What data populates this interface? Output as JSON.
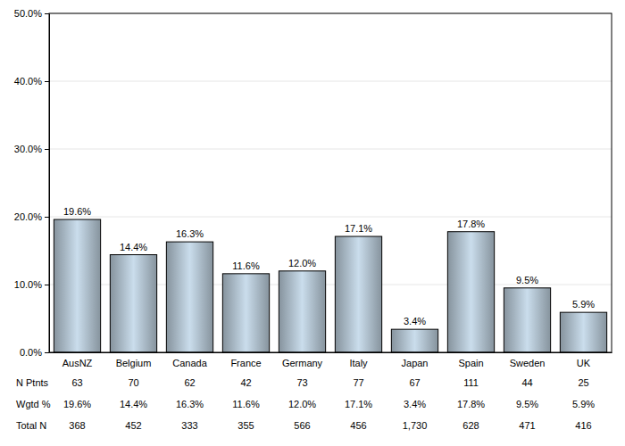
{
  "chart_data": {
    "type": "bar",
    "categories": [
      "AusNZ",
      "Belgium",
      "Canada",
      "France",
      "Germany",
      "Italy",
      "Japan",
      "Spain",
      "Sweden",
      "UK"
    ],
    "values": [
      19.6,
      14.4,
      16.3,
      11.6,
      12.0,
      17.1,
      3.4,
      17.8,
      9.5,
      5.9
    ],
    "value_labels": [
      "19.6%",
      "14.4%",
      "16.3%",
      "11.6%",
      "12.0%",
      "17.1%",
      "3.4%",
      "17.8%",
      "9.5%",
      "5.9%"
    ],
    "data_labels": true,
    "color": "#b9cad8",
    "ylim": [
      0,
      50
    ],
    "yticks": [
      {
        "value": 0,
        "label": "0.0%"
      },
      {
        "value": 10,
        "label": "10.0%"
      },
      {
        "value": 20,
        "label": "20.0%"
      },
      {
        "value": 30,
        "label": "30.0%"
      },
      {
        "value": 40,
        "label": "40.0%"
      },
      {
        "value": 50,
        "label": "50.0%"
      }
    ],
    "grid": true,
    "table": {
      "rows": [
        {
          "label": "N Ptnts",
          "values": [
            63,
            70,
            62,
            42,
            73,
            77,
            67,
            111,
            44,
            25
          ]
        },
        {
          "label": "Wgtd %",
          "values": [
            19.6,
            14.4,
            16.3,
            11.6,
            12.0,
            17.1,
            3.4,
            17.8,
            9.5,
            5.9
          ],
          "value_labels": [
            "19.6%",
            "14.4%",
            "16.3%",
            "11.6%",
            "12.0%",
            "17.1%",
            "3.4%",
            "17.8%",
            "9.5%",
            "5.9%"
          ]
        },
        {
          "label": "Total N",
          "values": [
            368,
            452,
            333,
            355,
            566,
            456,
            1730,
            628,
            471,
            416
          ],
          "value_labels": [
            "368",
            "452",
            "333",
            "355",
            "566",
            "456",
            "1,730",
            "628",
            "471",
            "416"
          ]
        }
      ]
    }
  }
}
